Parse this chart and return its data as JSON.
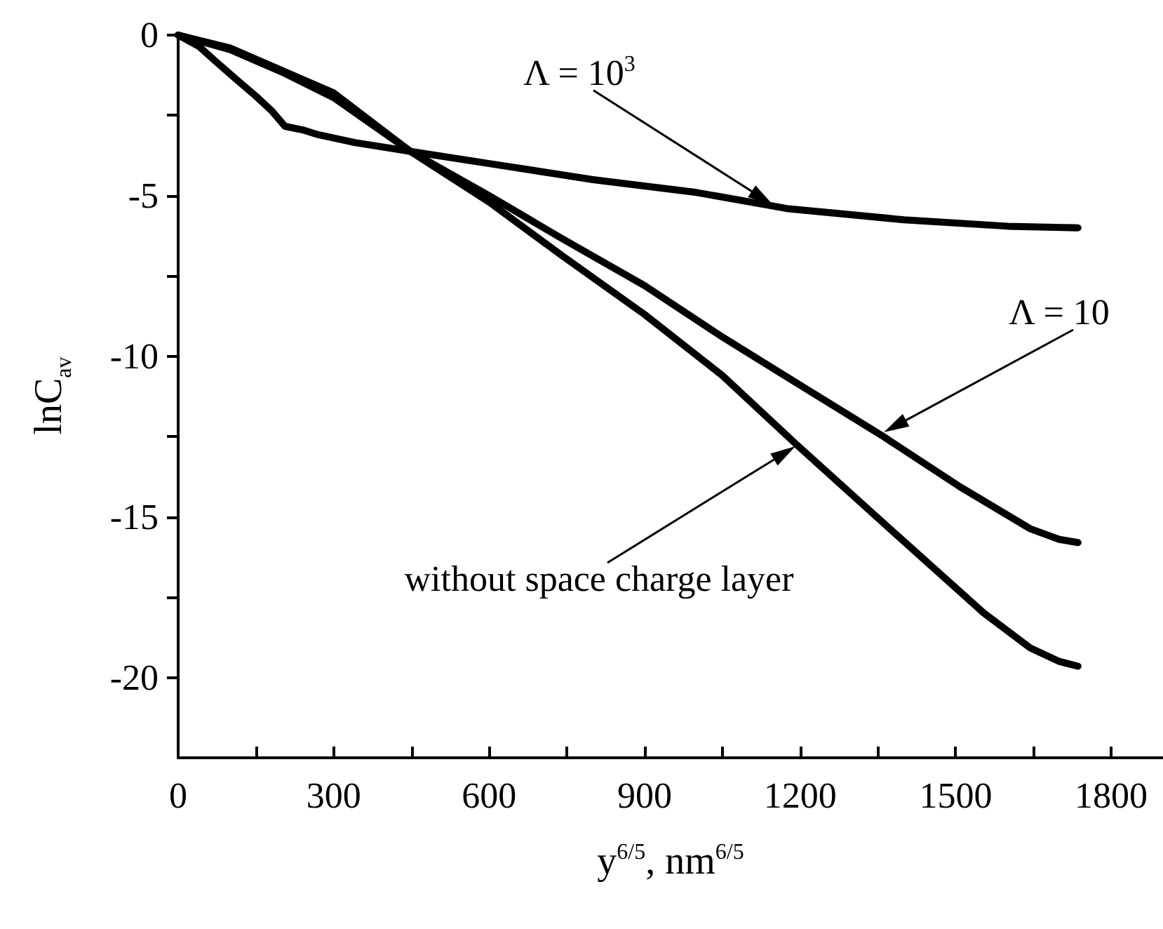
{
  "chart_data": {
    "type": "line",
    "xlabel": "y$^{6/5}$, nm$^{6/5}$",
    "ylabel": "lnC$_{av}$",
    "xlim": [
      0,
      1900
    ],
    "ylim": [
      -22.5,
      0
    ],
    "xticks": [
      0,
      {
        "value": 150,
        "label": null
      },
      300,
      {
        "value": 450,
        "label": null
      },
      600,
      {
        "value": 750,
        "label": null
      },
      900,
      {
        "value": 1050,
        "label": null
      },
      1200,
      {
        "value": 1350,
        "label": null
      },
      1500,
      {
        "value": 1650,
        "label": null
      },
      1800
    ],
    "yticks": [
      0,
      {
        "value": -2.5,
        "label": null
      },
      -5,
      {
        "value": -7.5,
        "label": null
      },
      -10,
      {
        "value": -12.5,
        "label": null
      },
      -15,
      {
        "value": -17.5,
        "label": null
      },
      -20
    ],
    "grid": false,
    "marker": "none",
    "line_style": "solid",
    "series": [
      {
        "color": "#000000",
        "x": [
          0,
          40,
          71,
          110,
          150,
          180,
          206,
          240,
          270,
          342,
          448,
          600,
          800,
          1000,
          1174,
          1400,
          1600,
          1736
        ],
        "values": [
          0,
          -0.35,
          -0.8,
          -1.35,
          -1.9,
          -2.35,
          -2.84,
          -2.95,
          -3.1,
          -3.35,
          -3.62,
          -4.0,
          -4.5,
          -4.9,
          -5.4,
          -5.75,
          -5.95,
          -6.0
        ]
      },
      {
        "color": "#000000",
        "x": [
          0,
          100,
          200,
          300,
          448,
          600,
          740,
          900,
          1050,
          1193,
          1356,
          1508,
          1644,
          1700,
          1736
        ],
        "values": [
          0,
          -0.4,
          -1.1,
          -1.8,
          -3.62,
          -5.0,
          -6.33,
          -7.8,
          -9.4,
          -10.83,
          -12.45,
          -14.06,
          -15.37,
          -15.7,
          -15.8
        ]
      },
      {
        "color": "#000000",
        "x": [
          0,
          100,
          200,
          300,
          448,
          600,
          740,
          900,
          1050,
          1193,
          1373,
          1554,
          1644,
          1700,
          1736
        ],
        "values": [
          0,
          -0.45,
          -1.15,
          -1.95,
          -3.62,
          -5.2,
          -6.86,
          -8.7,
          -10.6,
          -12.75,
          -15.37,
          -17.99,
          -19.08,
          -19.5,
          -19.65
        ]
      }
    ],
    "annotations": [
      "Λ = 10$^{3}$",
      "Λ = 10",
      "without space charge layer"
    ]
  }
}
